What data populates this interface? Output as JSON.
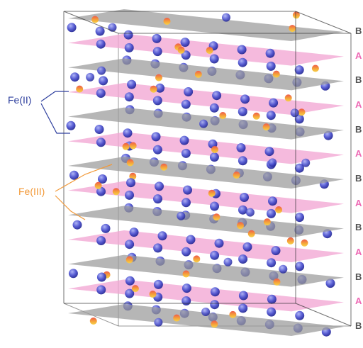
{
  "labels": {
    "fe2": "Fe(II)",
    "fe3": "Fe(III)"
  },
  "plane_labels": [
    "B",
    "A",
    "B",
    "A",
    "B",
    "A",
    "B",
    "A",
    "B",
    "A",
    "B",
    "A",
    "B"
  ],
  "colors": {
    "plane_A": "#f2a6d4",
    "plane_B": "#9a9a9a",
    "label_A": "#ee6ab5",
    "label_B": "#555555",
    "fe2_atom": "#3f46c9",
    "fe3_atom_top": "#ef5a4a",
    "fe3_atom_bottom": "#f7c83c",
    "box_edge": "#333333",
    "fe2_leader": "#2e3f9e",
    "fe3_leader": "#f29a3a"
  }
}
